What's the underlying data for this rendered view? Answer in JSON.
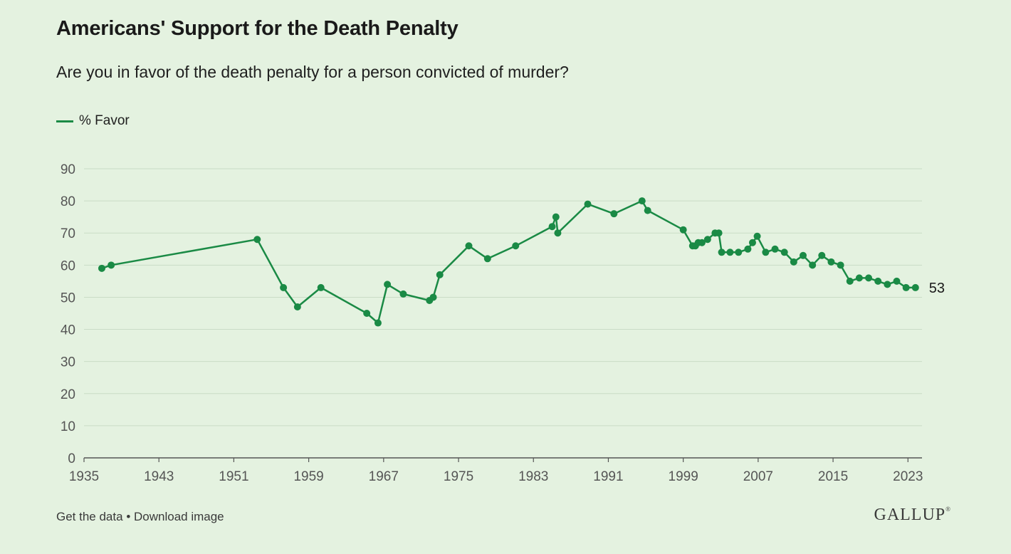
{
  "header": {
    "title": "Americans' Support for the Death Penalty",
    "subtitle": "Are you in favor of the death penalty for a person convicted of murder?"
  },
  "legend": {
    "label": "% Favor"
  },
  "footer": {
    "get_data": "Get the data",
    "separator": "•",
    "download": "Download image",
    "brand": "GALLUP",
    "brand_mark": "®"
  },
  "colors": {
    "background": "#e4f2e0",
    "series": "#1a8a45",
    "grid": "#c9dcc6",
    "axis": "#555555"
  },
  "chart_data": {
    "type": "line",
    "title": "Americans' Support for the Death Penalty",
    "xlabel": "",
    "ylabel": "",
    "xlim": [
      1935,
      2024.5
    ],
    "ylim": [
      0,
      90
    ],
    "xticks": [
      1935,
      1943,
      1951,
      1959,
      1967,
      1975,
      1983,
      1991,
      1999,
      2007,
      2015,
      2023
    ],
    "yticks": [
      0,
      10,
      20,
      30,
      40,
      50,
      60,
      70,
      80,
      90
    ],
    "grid": true,
    "legend_position": "top-left",
    "end_label": "53",
    "series": [
      {
        "name": "% Favor",
        "x": [
          1936.9,
          1937.9,
          1953.5,
          1956.3,
          1957.8,
          1960.3,
          1965.2,
          1966.4,
          1967.4,
          1969.1,
          1971.9,
          1972.3,
          1973.0,
          1976.1,
          1978.1,
          1981.1,
          1985.0,
          1985.4,
          1985.6,
          1988.8,
          1991.6,
          1994.6,
          1995.2,
          1999.0,
          2000.0,
          2000.3,
          2000.6,
          2001.0,
          2001.6,
          2002.4,
          2002.8,
          2003.1,
          2004.0,
          2004.9,
          2005.9,
          2006.4,
          2006.9,
          2007.8,
          2008.8,
          2009.8,
          2010.8,
          2011.8,
          2012.8,
          2013.8,
          2014.8,
          2015.8,
          2016.8,
          2017.8,
          2018.8,
          2019.8,
          2020.8,
          2021.8,
          2022.8,
          2023.8
        ],
        "values": [
          59,
          60,
          68,
          53,
          47,
          53,
          45,
          42,
          54,
          51,
          49,
          50,
          57,
          66,
          62,
          66,
          72,
          75,
          70,
          79,
          76,
          80,
          77,
          71,
          66,
          66,
          67,
          67,
          68,
          70,
          70,
          64,
          64,
          64,
          65,
          67,
          69,
          64,
          65,
          64,
          61,
          63,
          60,
          63,
          61,
          60,
          55,
          56,
          56,
          55,
          54,
          55,
          53,
          53
        ]
      }
    ]
  }
}
